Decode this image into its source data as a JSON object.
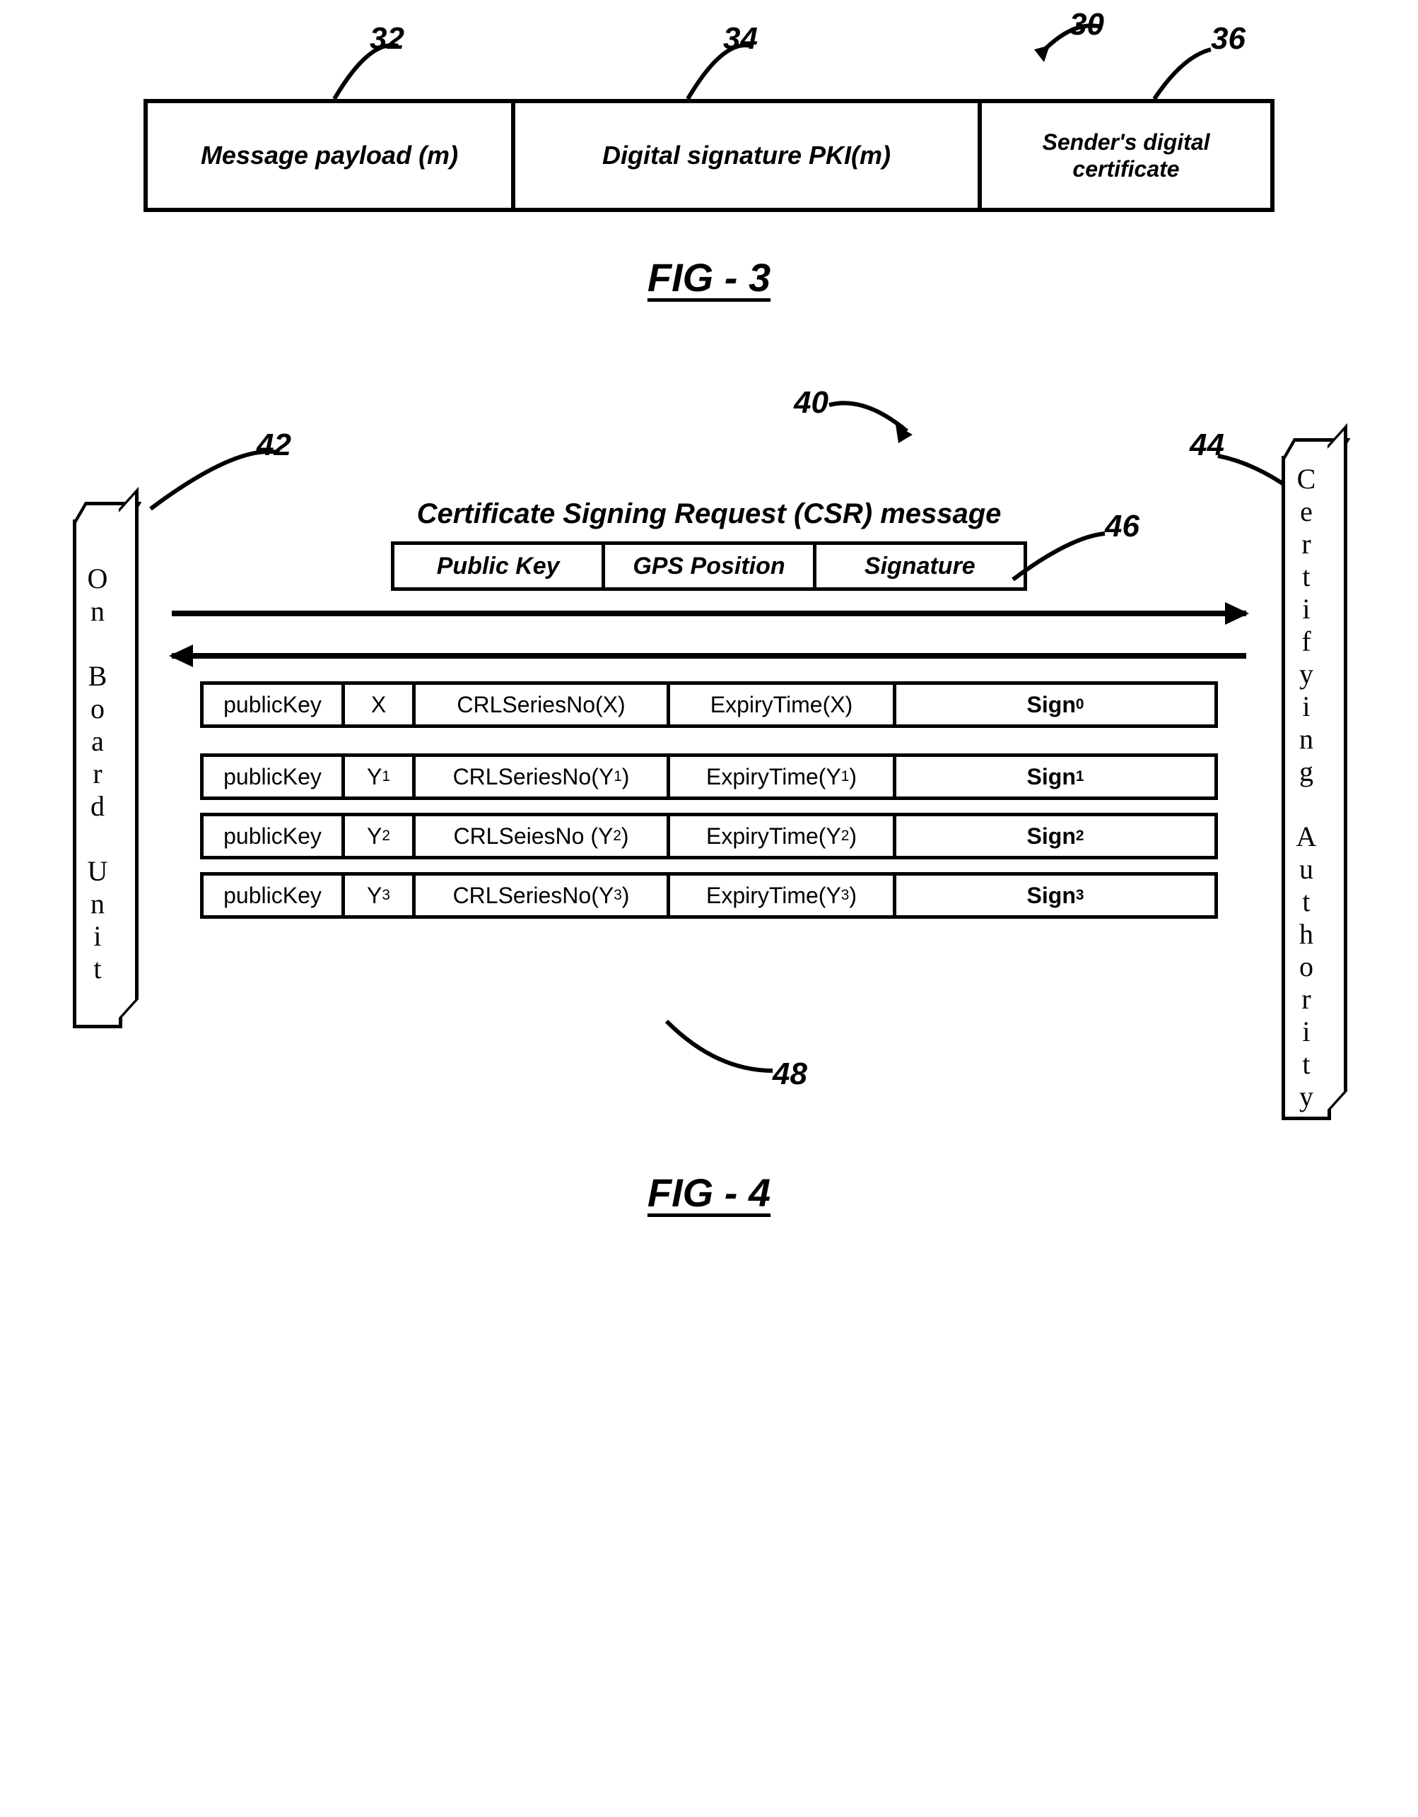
{
  "fig3": {
    "ref_main": "30",
    "lead_32": "32",
    "lead_34": "34",
    "lead_36": "36",
    "cell1": "Message payload (m)",
    "cell2": "Digital signature PKI(m)",
    "cell3": "Sender's digital certificate",
    "caption": "FIG - 3"
  },
  "fig4": {
    "ref_main": "40",
    "lead_42": "42",
    "lead_44": "44",
    "lead_46": "46",
    "lead_48": "48",
    "left_pillar": "O\nn\n\nB\no\na\nr\nd\n\nU\nn\ni\nt",
    "right_pillar": "C\ne\nr\nt\ni\nf\ny\ni\nn\ng\n\nA\nu\nt\nh\no\nr\ni\nt\ny",
    "csr_title": "Certificate Signing Request (CSR) message",
    "csr_f1": "Public Key",
    "csr_f2": "GPS Position",
    "csr_f3": "Signature",
    "rows": [
      {
        "pk": "publicKey",
        "id": "X",
        "crl": "CRLSeriesNo(X)",
        "exp": "ExpiryTime(X)",
        "sign_base": "Sign",
        "sign_sub": "0"
      },
      {
        "pk": "publicKey",
        "id": "Y1",
        "crl": "CRLSeriesNo(Y1)",
        "exp": "ExpiryTime(Y1)",
        "sign_base": "Sign",
        "sign_sub": "1"
      },
      {
        "pk": "publicKey",
        "id": "Y2",
        "crl": "CRLSeiesNo (Y2)",
        "exp": "ExpiryTime(Y2)",
        "sign_base": "Sign",
        "sign_sub": "2"
      },
      {
        "pk": "publicKey",
        "id": "Y3",
        "crl": "CRLSeriesNo(Y3)",
        "exp": "ExpiryTime(Y3)",
        "sign_base": "Sign",
        "sign_sub": "3"
      }
    ],
    "caption": "FIG - 4"
  },
  "style": {
    "stroke": "#000000",
    "stroke_width": 6,
    "font_italic_bold": true
  }
}
